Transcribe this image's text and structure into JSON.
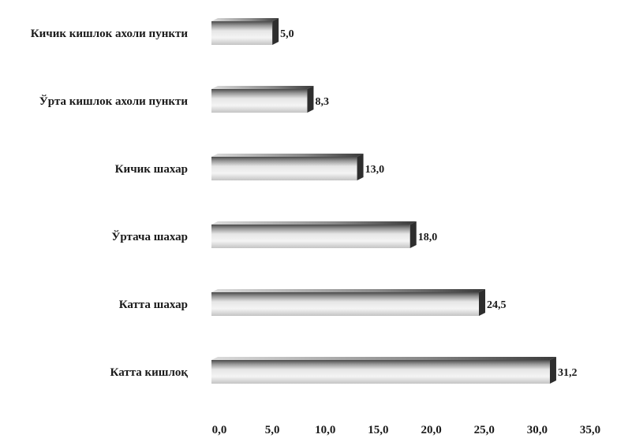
{
  "chart_data": {
    "type": "bar",
    "orientation": "horizontal",
    "style": "3d-cylinder-gray",
    "categories": [
      "Кичик кишлок ахоли пункти",
      "Ўрта кишлок ахоли пункти",
      "Кичик шахар",
      "Ўртача шахар",
      "Катта шахар",
      "Катта кишлоқ"
    ],
    "values": [
      5.0,
      8.3,
      13.0,
      18.0,
      24.5,
      31.2
    ],
    "value_labels": [
      "5,0",
      "8,3",
      "13,0",
      "18,0",
      "24,5",
      "31,2"
    ],
    "xlim": [
      0,
      35
    ],
    "x_ticks": [
      0,
      5,
      10,
      15,
      20,
      25,
      30,
      35
    ],
    "x_tick_labels": [
      "0,0",
      "5,0",
      "10,0",
      "15,0",
      "20,0",
      "25,0",
      "30,0",
      "35,0"
    ],
    "grid": false,
    "legend": "none",
    "colors": {
      "bar_light": "#f2f2f2",
      "bar_mid": "#c8c8c8",
      "bar_dark": "#5a5a5a",
      "end_cap": "#2e2e2e",
      "text": "#1a1a1a"
    }
  }
}
